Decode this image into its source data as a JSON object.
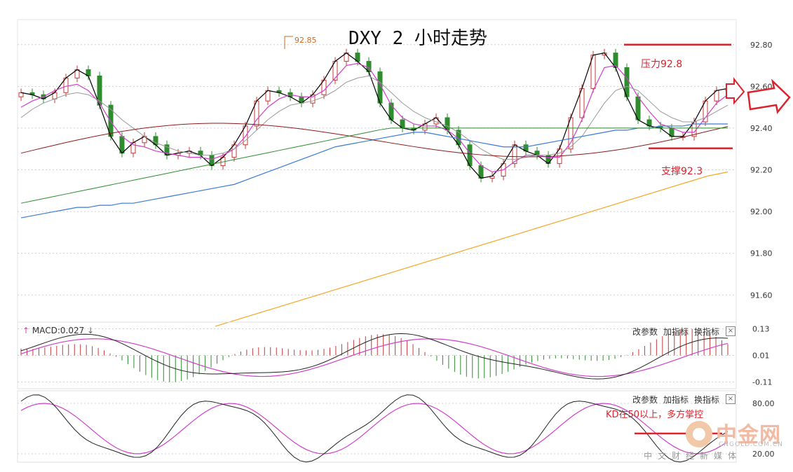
{
  "title": "DXY 2 小时走势",
  "peak_label": "92.85",
  "annotations": {
    "resistance": "压力92.8",
    "support": "支撑92.3",
    "kd_note": "KD在50以上，多方掌控"
  },
  "macd_panel": {
    "label": "MACD:0.027",
    "buttons": [
      "改参数",
      "加指标",
      "换指标"
    ],
    "close": "×",
    "ticks": [
      "0.13",
      "0.01",
      "-0.11"
    ]
  },
  "kd_panel": {
    "buttons": [
      "改参数",
      "加指标",
      "换指标"
    ],
    "close": "×",
    "ticks": [
      "80.00",
      "20.00"
    ]
  },
  "watermark": {
    "name": "中金网",
    "url": "CNGOLD.COM.CN",
    "tagline": "中文财经新媒体"
  },
  "colors": {
    "up": "#c33a3a",
    "down": "#2e8b2e",
    "ma5": "#000000",
    "ma10": "#d040c8",
    "ma20": "#999999",
    "ma60": "#8b1a1a",
    "ma120": "#2e8b2e",
    "ma250": "#3a7bd5",
    "ma500": "#f5a623",
    "annotation": "#d9232d"
  },
  "chart_data": {
    "type": "line",
    "title": "DXY 2 小时走势",
    "xlabel": "",
    "ylabel": "",
    "y_ticks": [
      "92.80",
      "92.60",
      "92.40",
      "92.20",
      "92.00",
      "91.80",
      "91.60"
    ],
    "ylim": [
      91.47,
      92.92
    ],
    "resistance": 92.8,
    "support": 92.3,
    "high_marker": 92.85,
    "series": [
      {
        "name": "",
        "kind": "close",
        "values": [
          92.57,
          92.56,
          92.54,
          92.57,
          92.64,
          92.68,
          92.65,
          92.51,
          92.36,
          92.28,
          92.33,
          92.36,
          92.32,
          92.27,
          92.28,
          92.29,
          92.27,
          92.22,
          92.26,
          92.32,
          92.41,
          92.53,
          92.58,
          92.57,
          92.55,
          92.52,
          92.56,
          92.63,
          92.72,
          92.76,
          92.72,
          92.67,
          92.52,
          92.44,
          92.4,
          92.39,
          92.42,
          92.45,
          92.39,
          92.32,
          92.22,
          92.16,
          92.17,
          92.23,
          92.32,
          92.29,
          92.27,
          92.23,
          92.3,
          92.45,
          92.59,
          92.75,
          92.76,
          92.69,
          92.55,
          92.44,
          92.41,
          92.4,
          92.36,
          92.36,
          92.43,
          92.53,
          92.58,
          92.59
        ]
      },
      {
        "name": "",
        "kind": "ma-short",
        "values": [
          92.5,
          92.53,
          92.55,
          92.58,
          92.6,
          92.61,
          92.58,
          92.52,
          92.43,
          92.36,
          92.32,
          92.31,
          92.29,
          92.28,
          92.27,
          92.26,
          92.26,
          92.25,
          92.27,
          92.3,
          92.36,
          92.44,
          92.5,
          92.54,
          92.56,
          92.55,
          92.55,
          92.58,
          92.64,
          92.7,
          92.71,
          92.69,
          92.61,
          92.51,
          92.45,
          92.42,
          92.41,
          92.41,
          92.39,
          92.35,
          92.28,
          92.22,
          92.19,
          92.2,
          92.24,
          92.27,
          92.27,
          92.26,
          92.26,
          92.33,
          92.44,
          92.58,
          92.69,
          92.7,
          92.64,
          92.55,
          92.48,
          92.42,
          92.4,
          92.38,
          92.38,
          92.45,
          92.52,
          92.56
        ]
      },
      {
        "name": "",
        "kind": "ma-mid",
        "values": [
          92.45,
          92.49,
          92.52,
          92.54,
          92.56,
          92.57,
          92.56,
          92.53,
          92.49,
          92.44,
          92.4,
          92.36,
          92.33,
          92.31,
          92.29,
          92.28,
          92.27,
          92.27,
          92.28,
          92.3,
          92.34,
          92.39,
          92.44,
          92.48,
          92.51,
          92.52,
          92.53,
          92.55,
          92.58,
          92.62,
          92.64,
          92.65,
          92.62,
          92.57,
          92.52,
          92.48,
          92.45,
          92.43,
          92.41,
          92.38,
          92.34,
          92.3,
          92.27,
          92.25,
          92.25,
          92.26,
          92.27,
          92.27,
          92.28,
          92.31,
          92.36,
          92.44,
          92.52,
          92.58,
          92.6,
          92.58,
          92.53,
          92.48,
          92.45,
          92.43,
          92.43,
          92.45,
          92.48,
          92.51
        ]
      },
      {
        "name": "",
        "kind": "ma-long",
        "values": [
          91.97,
          91.98,
          91.99,
          92.0,
          92.01,
          92.02,
          92.02,
          92.03,
          92.03,
          92.04,
          92.04,
          92.05,
          92.06,
          92.07,
          92.08,
          92.09,
          92.1,
          92.11,
          92.12,
          92.13,
          92.15,
          92.17,
          92.19,
          92.21,
          92.23,
          92.25,
          92.27,
          92.29,
          92.31,
          92.32,
          92.33,
          92.34,
          92.35,
          92.36,
          92.37,
          92.38,
          92.38,
          92.37,
          92.36,
          92.35,
          92.34,
          92.33,
          92.32,
          92.31,
          92.31,
          92.31,
          92.32,
          92.33,
          92.34,
          92.35,
          92.36,
          92.37,
          92.38,
          92.39,
          92.39,
          92.4,
          92.4,
          92.41,
          92.41,
          92.41,
          92.42,
          92.42,
          92.42,
          92.42
        ]
      },
      {
        "name": "",
        "kind": "ma-trend",
        "values": [
          91.45,
          91.48,
          91.51,
          91.54,
          91.57,
          91.6,
          91.63,
          91.66,
          91.69,
          91.72,
          91.75,
          91.78,
          91.81,
          91.84,
          91.87,
          91.9,
          91.93,
          91.96,
          91.99,
          92.02,
          92.05,
          92.08,
          92.11,
          92.14,
          92.17,
          92.19
        ]
      }
    ],
    "macd": {
      "y_ticks": [
        0.13,
        0.01,
        -0.11
      ],
      "ylim": [
        -0.14,
        0.16
      ],
      "value": 0.027
    },
    "kd": {
      "y_ticks": [
        80,
        20
      ],
      "ylim": [
        10,
        95
      ]
    }
  }
}
